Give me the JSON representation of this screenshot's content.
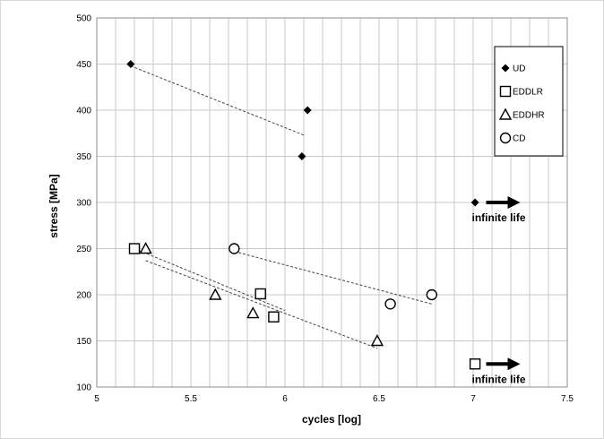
{
  "chart_data": {
    "type": "scatter",
    "title": "",
    "xlabel": "cycles [log]",
    "ylabel": "stress [MPa]",
    "xlim": [
      5,
      7.5
    ],
    "ylim": [
      100,
      500
    ],
    "xticks": [
      "5",
      "5.5",
      "6",
      "6.5",
      "7",
      "7.5"
    ],
    "yticks": [
      "100",
      "150",
      "200",
      "250",
      "300",
      "350",
      "400",
      "450",
      "500"
    ],
    "grid": true,
    "legend_position": "top-right",
    "series": [
      {
        "name": "UD",
        "marker": "diamond",
        "points": [
          [
            5.18,
            450
          ],
          [
            6.09,
            350
          ],
          [
            6.12,
            400
          ],
          [
            7.01,
            300
          ]
        ],
        "trend": [
          [
            5.18,
            448
          ],
          [
            6.1,
            373
          ]
        ]
      },
      {
        "name": "EDDLR",
        "marker": "square",
        "points": [
          [
            5.2,
            250
          ],
          [
            5.87,
            201
          ],
          [
            5.94,
            176
          ],
          [
            7.01,
            125
          ]
        ],
        "trend": [
          [
            5.2,
            250
          ],
          [
            6.0,
            183
          ]
        ]
      },
      {
        "name": "EDDHR",
        "marker": "triangle",
        "points": [
          [
            5.26,
            250
          ],
          [
            5.63,
            200
          ],
          [
            5.83,
            180
          ],
          [
            6.49,
            150
          ]
        ],
        "trend": [
          [
            5.26,
            237
          ],
          [
            6.49,
            142
          ]
        ]
      },
      {
        "name": "CD",
        "marker": "circle",
        "points": [
          [
            5.73,
            250
          ],
          [
            6.56,
            190
          ],
          [
            6.78,
            200
          ]
        ],
        "trend": [
          [
            5.73,
            247
          ],
          [
            6.78,
            190
          ]
        ]
      }
    ],
    "annotations": [
      {
        "text": "infinite life",
        "x": 7.05,
        "y": 300
      },
      {
        "text": "infinite life",
        "x": 7.05,
        "y": 125
      }
    ],
    "colors": {
      "marker": "#000000",
      "grid": "#c8c8c8",
      "trend": "#444444"
    }
  }
}
